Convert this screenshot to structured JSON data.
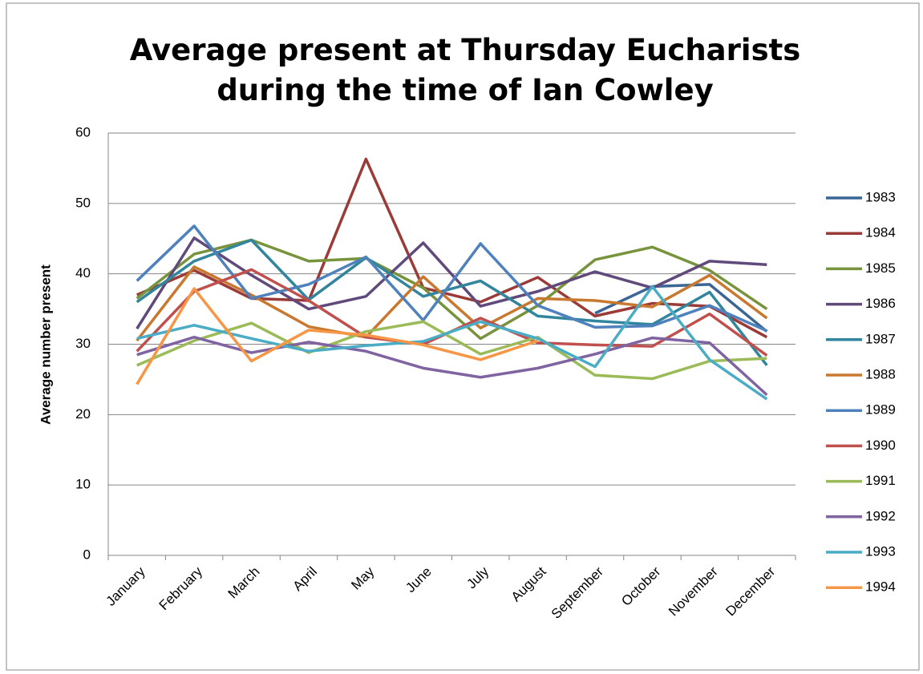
{
  "chart_data": {
    "type": "line",
    "title": "Average present at Thursday Eucharists during the time of Ian Cowley",
    "y_label": "Average number present",
    "categories": [
      "January",
      "February",
      "March",
      "April",
      "May",
      "June",
      "July",
      "August",
      "September",
      "October",
      "November",
      "December"
    ],
    "ylim": [
      0,
      60
    ],
    "yticks": [
      0,
      10,
      20,
      30,
      40,
      50,
      60
    ],
    "grid": true,
    "legend": "right",
    "series": [
      {
        "name": "1983",
        "color": "#3b6595",
        "values": [
          null,
          null,
          null,
          null,
          null,
          null,
          null,
          null,
          34.4,
          38.2,
          38.5,
          31.8
        ]
      },
      {
        "name": "1984",
        "color": "#9b3b38",
        "values": [
          37,
          40.5,
          36.5,
          36.2,
          56.3,
          38,
          36,
          39.5,
          34,
          35.8,
          35.4,
          31
        ]
      },
      {
        "name": "1985",
        "color": "#77933c",
        "values": [
          36.5,
          42.8,
          44.8,
          41.8,
          42.2,
          38,
          30.8,
          35.5,
          42,
          43.8,
          40.5,
          35
        ]
      },
      {
        "name": "1986",
        "color": "#604a7b",
        "values": [
          32.2,
          45.1,
          39.8,
          35,
          36.8,
          44.4,
          35.4,
          37.5,
          40.3,
          38,
          41.8,
          41.3
        ]
      },
      {
        "name": "1987",
        "color": "#31859c",
        "values": [
          36,
          41.8,
          44.8,
          36.3,
          42.3,
          36.8,
          39,
          34,
          33.3,
          32.8,
          37.4,
          27
        ]
      },
      {
        "name": "1988",
        "color": "#c8782f",
        "values": [
          30.5,
          41,
          37,
          32.5,
          31,
          39.6,
          32.3,
          36.5,
          36.2,
          35.3,
          39.8,
          33.7
        ]
      },
      {
        "name": "1989",
        "color": "#4f81bd",
        "values": [
          39,
          46.8,
          36.5,
          38.5,
          42.4,
          33.4,
          44.3,
          35.5,
          32.4,
          32.6,
          35.5,
          31.9
        ]
      },
      {
        "name": "1990",
        "color": "#c0504d",
        "values": [
          29,
          37.5,
          40.6,
          36.2,
          31,
          30,
          33.7,
          30.2,
          29.9,
          29.7,
          34.3,
          28.4
        ]
      },
      {
        "name": "1991",
        "color": "#9bbb59",
        "values": [
          27,
          30.5,
          33,
          28.8,
          31.8,
          33.2,
          28.6,
          31,
          25.6,
          25.1,
          27.6,
          28
        ]
      },
      {
        "name": "1992",
        "color": "#8064a2",
        "values": [
          28.5,
          31,
          28.8,
          30.3,
          29,
          26.6,
          25.3,
          26.6,
          28.6,
          30.9,
          30.2,
          22.8
        ]
      },
      {
        "name": "1993",
        "color": "#4bacc6",
        "values": [
          30.8,
          32.7,
          30.8,
          29,
          29.8,
          30.4,
          33.2,
          30.8,
          26.8,
          38.2,
          27.8,
          22.2
        ]
      },
      {
        "name": "1994",
        "color": "#f79646",
        "values": [
          24.3,
          37.9,
          27.6,
          32,
          31.3,
          29.9,
          27.8,
          30.5,
          null,
          null,
          null,
          null
        ]
      }
    ]
  }
}
